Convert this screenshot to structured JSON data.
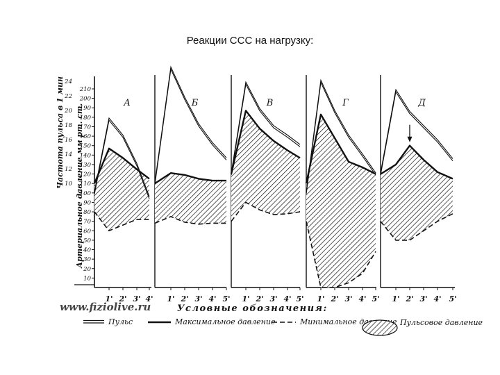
{
  "page": {
    "title": "Реакции ССС на нагрузку:",
    "watermark": "www.fiziolive.ru"
  },
  "chart_data": {
    "type": "line",
    "title": "Реакции ССС на нагрузку:",
    "ylabel_pulse": "Частота пульса в 1 мин",
    "ylabel_pressure": "Артериальное давление мм рт. ст.",
    "pulse_ticks": [
      "24",
      "22",
      "20",
      "18",
      "16",
      "14",
      "12",
      "10"
    ],
    "pressure_ticks": [
      "210",
      "200",
      "190",
      "180",
      "170",
      "160",
      "150",
      "140",
      "130",
      "120",
      "110",
      "100",
      "90",
      "80",
      "70",
      "60",
      "50",
      "40",
      "30",
      "20",
      "10"
    ],
    "pressure_ylim": [
      0,
      210
    ],
    "legend_title": "Условные обозначения:",
    "legend": [
      "Пульс",
      "Максимальное давление",
      "Минимальное давление",
      "Пульсовое давление"
    ],
    "panels": [
      {
        "label": "А",
        "x_ticks": [
          "1'",
          "2'",
          "3'",
          "4'"
        ],
        "x": [
          0,
          1,
          2,
          3,
          4
        ],
        "pulse": [
          100,
          178,
          160,
          130,
          95
        ],
        "max_pressure": [
          110,
          147,
          137,
          125,
          115
        ],
        "min_pressure": [
          80,
          60,
          66,
          72,
          72
        ]
      },
      {
        "label": "Б",
        "x_ticks": [
          "1'",
          "2'",
          "3'",
          "4'",
          "5'"
        ],
        "x": [
          0,
          1,
          2,
          3,
          4,
          5
        ],
        "pulse": [
          110,
          232,
          200,
          172,
          152,
          136
        ],
        "max_pressure": [
          110,
          121,
          119,
          115,
          113,
          113
        ],
        "min_pressure": [
          68,
          75,
          69,
          67,
          68,
          68
        ]
      },
      {
        "label": "В",
        "x_ticks": [
          "1'",
          "2'",
          "3'",
          "4'",
          "5'"
        ],
        "x": [
          0,
          1,
          2,
          3,
          4,
          5
        ],
        "pulse": [
          120,
          216,
          188,
          170,
          160,
          150
        ],
        "max_pressure": [
          120,
          187,
          168,
          155,
          145,
          137
        ],
        "min_pressure": [
          70,
          90,
          82,
          77,
          78,
          80
        ]
      },
      {
        "label": "Г",
        "x_ticks": [
          "1'",
          "2'",
          "3'",
          "4'",
          "5'"
        ],
        "x": [
          0,
          1,
          2,
          3,
          4,
          5
        ],
        "pulse": [
          100,
          218,
          186,
          160,
          140,
          120
        ],
        "max_pressure": [
          110,
          183,
          158,
          133,
          127,
          120
        ],
        "min_pressure": [
          70,
          0,
          0,
          5,
          15,
          38
        ]
      },
      {
        "label": "Д",
        "x_ticks": [
          "1'",
          "2'",
          "3'",
          "4'",
          "5'"
        ],
        "x": [
          0,
          1,
          2,
          3,
          4,
          5
        ],
        "pulse": [
          120,
          208,
          185,
          170,
          155,
          135
        ],
        "max_pressure": [
          120,
          130,
          150,
          135,
          122,
          115
        ],
        "min_pressure": [
          70,
          50,
          50,
          60,
          70,
          78
        ]
      }
    ],
    "annotations": [
      "arrow at 2' in panel Д pointing to peak of maximal pressure"
    ]
  }
}
